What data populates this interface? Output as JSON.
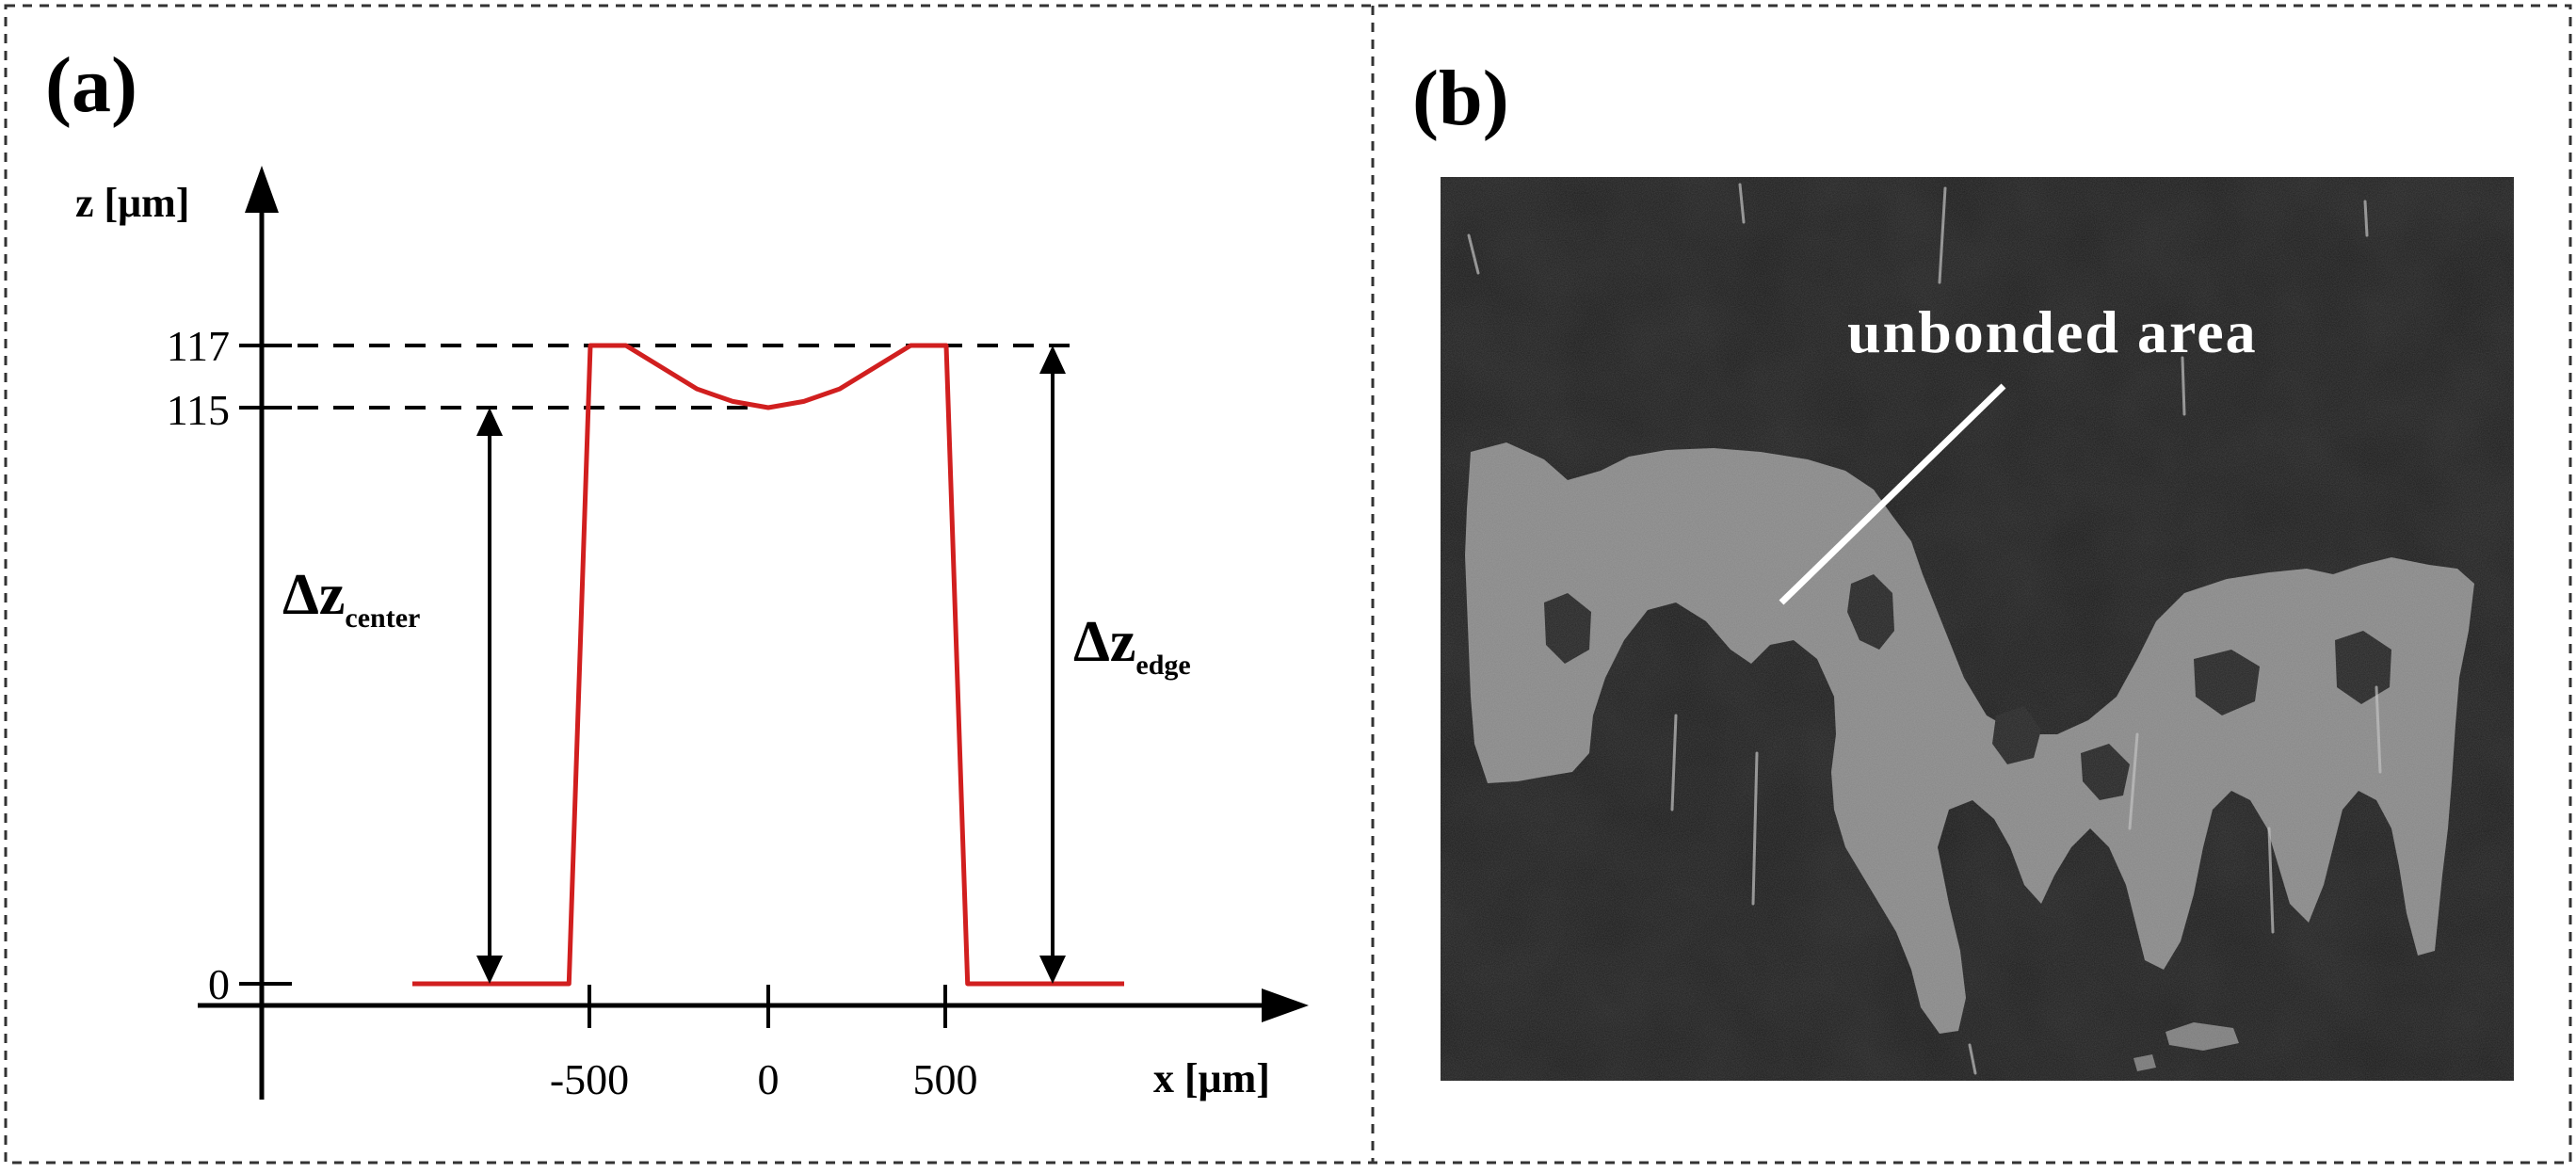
{
  "panel_a": {
    "label": "(a)",
    "y_axis_label": "z [μm]",
    "x_axis_label": "x [μm]",
    "y_ticks": [
      "117",
      "115",
      "0"
    ],
    "x_ticks": [
      "-500",
      "0",
      "500"
    ],
    "delta_center": {
      "main": "Δz",
      "sub": "center"
    },
    "delta_edge": {
      "main": "Δz",
      "sub": "edge"
    }
  },
  "panel_b": {
    "label": "(b)",
    "annotation": "unbonded area"
  },
  "colors": {
    "profile_line": "#d11f1f",
    "micrograph_bg": "#252525",
    "unbonded_region": "#8c8c8c"
  },
  "chart_data": {
    "type": "line",
    "title": "",
    "xlabel": "x [μm]",
    "ylabel": "z [μm]",
    "series": [
      {
        "x": [
          -1000,
          -560,
          -500,
          -400,
          -300,
          -200,
          -100,
          0,
          100,
          200,
          300,
          400,
          500,
          560,
          1000
        ],
        "y": [
          0,
          0,
          117,
          117,
          116.3,
          115.6,
          115.2,
          115,
          115.2,
          115.6,
          116.3,
          117,
          117,
          0,
          0
        ]
      }
    ],
    "annotations": [
      "117",
      "115",
      "Δz center",
      "Δz edge"
    ]
  }
}
